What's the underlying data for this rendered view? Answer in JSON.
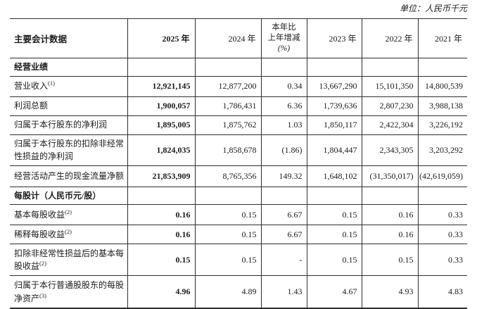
{
  "unit_note": "单位：人民币千元",
  "columns": {
    "label": "主要会计数据",
    "y2025": "2025 年",
    "y2024": "2024 年",
    "change_l1": "本年比",
    "change_l2": "上年增减",
    "change_l3": "(%)",
    "y2023": "2023 年",
    "y2022": "2022 年",
    "y2021": "2021 年"
  },
  "rows": [
    {
      "type": "section",
      "label": "经营业绩"
    },
    {
      "type": "data",
      "label": "营业收入",
      "sup": "(1)",
      "values": [
        "12,921,145",
        "12,877,200",
        "0.34",
        "13,667,290",
        "15,101,350",
        "14,800,539"
      ]
    },
    {
      "type": "data",
      "label": "利润总额",
      "values": [
        "1,900,057",
        "1,786,431",
        "6.36",
        "1,739,636",
        "2,807,230",
        "3,988,138"
      ]
    },
    {
      "type": "data",
      "label": "归属于本行股东的净利润",
      "values": [
        "1,895,005",
        "1,875,762",
        "1.03",
        "1,850,117",
        "2,422,304",
        "3,226,192"
      ]
    },
    {
      "type": "data",
      "label": "归属于本行股东的扣除非经常性损益的净利润",
      "values": [
        "1,824,035",
        "1,858,678",
        "(1.86)",
        "1,804,447",
        "2,343,305",
        "3,203,292"
      ]
    },
    {
      "type": "data",
      "label": "经营活动产生的现金流量净额",
      "values": [
        "21,853,909",
        "8,765,356",
        "149.32",
        "1,648,102",
        "(31,350,017)",
        "(42,619,059)"
      ]
    },
    {
      "type": "section",
      "label": "每股计（人民币元/股）"
    },
    {
      "type": "data",
      "label": "基本每股收益",
      "sup": "(2)",
      "values": [
        "0.16",
        "0.15",
        "6.67",
        "0.15",
        "0.16",
        "0.33"
      ]
    },
    {
      "type": "data",
      "label": "稀释每股收益",
      "sup": "(2)",
      "values": [
        "0.16",
        "0.15",
        "6.67",
        "0.15",
        "0.16",
        "0.33"
      ]
    },
    {
      "type": "data",
      "label": "扣除非经常性损益后的基本每股收益",
      "sup": "(2)",
      "values": [
        "0.15",
        "0.15",
        "-",
        "0.15",
        "0.15",
        "0.33"
      ]
    },
    {
      "type": "data",
      "label": "归属于本行普通股股东的每股净资产",
      "sup": "(3)",
      "values": [
        "4.96",
        "4.89",
        "1.43",
        "4.67",
        "4.93",
        "4.83"
      ]
    }
  ]
}
